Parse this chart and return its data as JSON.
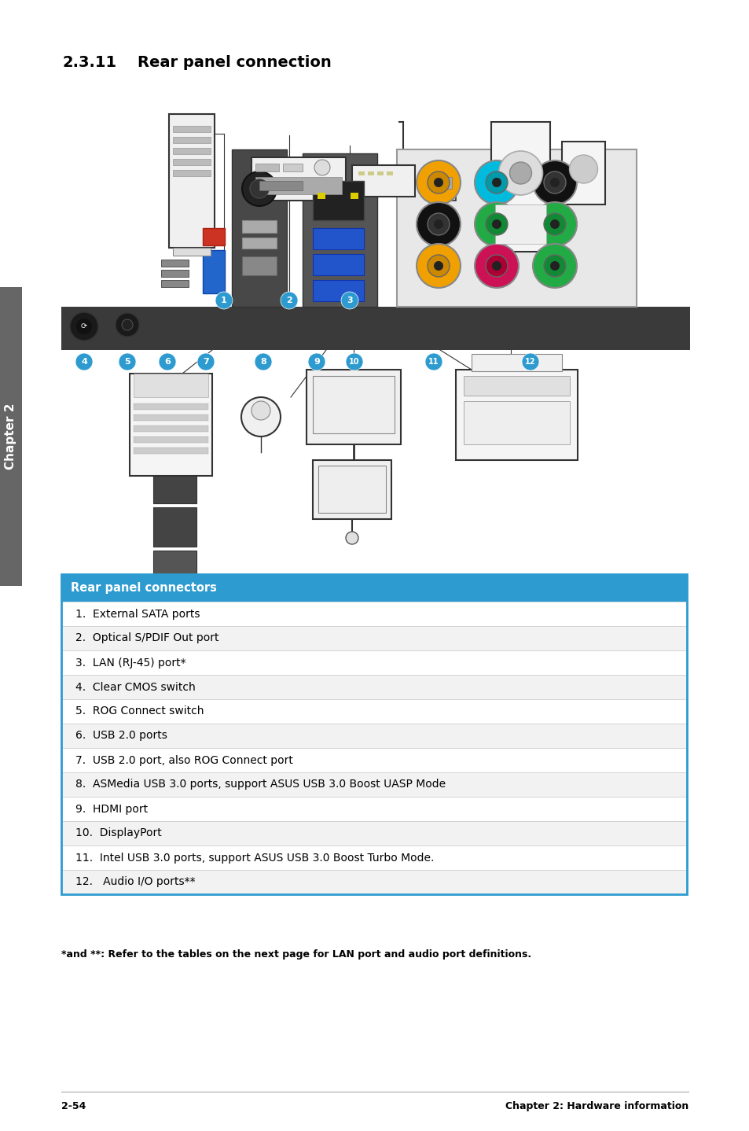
{
  "title_num": "2.3.11",
  "title_text": "Rear panel connection",
  "title_fontsize": 14,
  "table_header": "Rear panel connectors",
  "table_header_bg": "#2E9BD0",
  "table_header_color": "#FFFFFF",
  "table_header_fontsize": 10.5,
  "table_rows": [
    "1.  External SATA ports",
    "2.  Optical S/PDIF Out port",
    "3.  LAN (RJ-45) port*",
    "4.  Clear CMOS switch",
    "5.  ROG Connect switch",
    "6.  USB 2.0 ports",
    "7.  USB 2.0 port, also ROG Connect port",
    "8.  ASMedia USB 3.0 ports, support ASUS USB 3.0 Boost UASP Mode",
    "9.  HDMI port",
    "10.  DisplayPort",
    "11.  Intel USB 3.0 ports, support ASUS USB 3.0 Boost Turbo Mode.",
    "12.   Audio I/O ports**"
  ],
  "row_even_bg": "#FFFFFF",
  "row_odd_bg": "#F2F2F2",
  "row_border": "#CCCCCC",
  "row_text_color": "#000000",
  "row_fontsize": 10,
  "footnote": "*and **: Refer to the tables on the next page for LAN port and audio port definitions.",
  "footnote_fontsize": 9,
  "page_left": "2-54",
  "page_right": "Chapter 2: Hardware information",
  "page_fontsize": 9,
  "chapter_sidebar_text": "Chapter 2",
  "chapter_sidebar_bg": "#666666",
  "chapter_sidebar_text_color": "#FFFFFF",
  "bg_color": "#FFFFFF",
  "border_color": "#2E9BD0",
  "callout_bg": "#2E9BD0",
  "callout_text": "#FFFFFF",
  "shelf_color": "#4A4A4A",
  "audio_colors": [
    "#F5A800",
    "#00AACC",
    "#CC1111",
    "#00AA44",
    "#9933AA",
    "#FF88AA"
  ]
}
